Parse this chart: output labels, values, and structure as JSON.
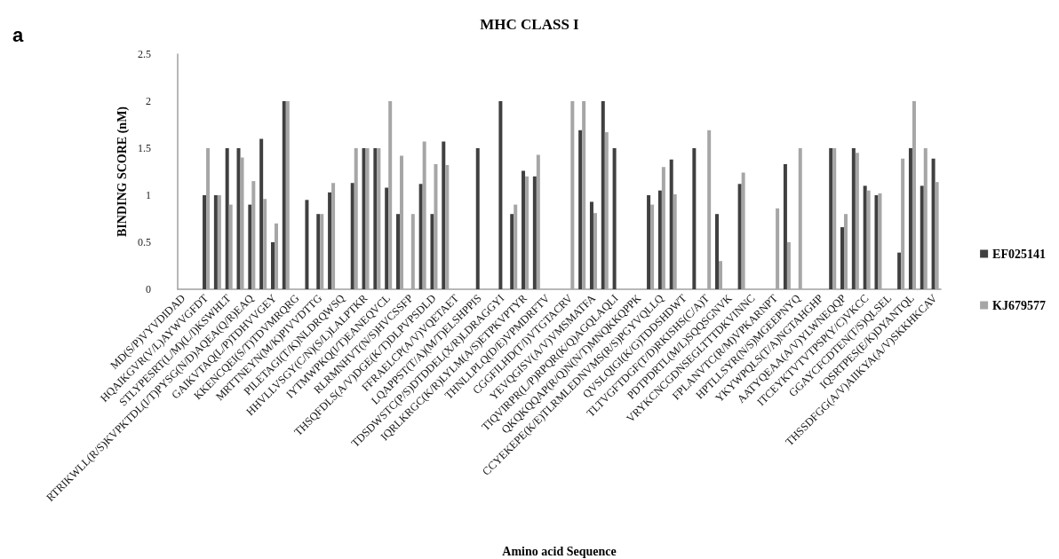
{
  "chart_data": {
    "type": "bar",
    "title": "MHC CLASS I",
    "xlabel": "Amino acid Sequence",
    "ylabel": "BINDING SCORE (nM)",
    "annotations": [
      "a"
    ],
    "categories": [
      "MD(S/P)VYVDIDAD",
      null,
      "HQAIKGVR(V/L)AYWVGFDT",
      null,
      "STLYPESRT(L/M)(L/I)KSWHLT",
      null,
      "RTRIKWLL(R/S)KVPKTDL(I/T)PYSG(N/D)AQEA(Q/R)EAQ",
      null,
      "GAIKVTAQ(L/P)TDHVVGEY",
      null,
      "KKENCQEI(S/T)TDVMRQRG",
      null,
      "MRTTNEYN(M/K)PIVVDTTG",
      null,
      "PILETAGI(T/K)NLDRQWSQ",
      null,
      "HHVLLVSGY(C/N)(S/L)LALPTKR",
      null,
      "IYTMWPKQ(I/T)EANEQVCL",
      null,
      "RLRMNHVT(N/S)HVCSSFP",
      null,
      "THSQFDLS(A/V)DGE(K/T)DLPVPSDLD",
      null,
      "FFRAELCP(A/V)VQETAET",
      null,
      "LQAPPST(T/A)(M/T)ELSHPPIS",
      null,
      "TDSDWSTC(P/S)DTDDEL(X/R)LDRAGGYI",
      null,
      "IQRLKRGC(K/R)LYLM(A/S)ETPKVPTYR",
      null,
      "THNLLPLQ(D/E)VPMDRFTV",
      null,
      "CGGFILHD(T/I)VTGTACRV",
      null,
      "YEVQGISV(A/V)VMSMATFA",
      null,
      "TIQVIRPR(L/P)RPQR(K/Q)AGQLAQLI",
      null,
      "QKQKQQAP(R/Q)N(N/T)MNQKKQPPK",
      null,
      "CCYEKEPE(K/E)TLRMLEDNVMS(R/S)PGYVQLLQ",
      null,
      "QVSLQIGI(K/G)TDDSHDWT",
      null,
      "TLTVGFTDGF(T/D)RKISHS(C/A)T",
      null,
      "PDTPDRTL(M/L)SQQSGNVK",
      null,
      "VRYKCNCGDNSEGLTTTDKVINNC",
      null,
      "FPLANVTC(R/M)VPKARNPT",
      null,
      "HPTLLSYR(N/S)MGEEPNYQ",
      null,
      "YKYWPQLS(T/A)NGTAHGHP",
      null,
      "AATYQEAA(A/V)YLWNEQQP",
      null,
      "ITCEYKTVTVTPSP(Y/C)VKCC",
      null,
      "GGAYCFCDTEN(T/S)QLSEL",
      null,
      "IQSRTPES(E/K)DYANTQL",
      null,
      "THSSDFGG(A/V)AIIKYA(A/V)SKKHKCAV"
    ],
    "series": [
      {
        "name": "EF025141",
        "color": "#404040",
        "values": [
          null,
          null,
          1.0,
          1.0,
          1.5,
          1.5,
          0.9,
          1.6,
          0.5,
          2.0,
          null,
          0.95,
          0.8,
          1.03,
          null,
          1.13,
          1.5,
          1.5,
          1.08,
          0.8,
          null,
          1.12,
          0.8,
          1.57,
          null,
          null,
          1.5,
          null,
          2.0,
          0.8,
          1.26,
          1.2,
          null,
          null,
          null,
          1.69,
          0.93,
          2.0,
          1.5,
          null,
          null,
          1.0,
          1.05,
          1.38,
          null,
          1.5,
          null,
          0.8,
          null,
          1.12,
          null,
          null,
          null,
          1.33,
          null,
          null,
          null,
          1.5,
          0.66,
          1.5,
          1.1,
          1.0,
          null,
          0.39,
          1.5,
          1.1,
          1.39
        ]
      },
      {
        "name": "KJ679577",
        "color": "#a6a6a6",
        "values": [
          null,
          null,
          1.5,
          1.0,
          0.9,
          1.4,
          1.15,
          0.96,
          0.7,
          2.0,
          null,
          null,
          0.8,
          1.13,
          null,
          1.5,
          1.5,
          1.5,
          2.0,
          1.42,
          0.8,
          1.57,
          1.33,
          1.32,
          null,
          null,
          null,
          null,
          null,
          0.9,
          1.2,
          1.43,
          null,
          null,
          2.0,
          2.0,
          0.81,
          1.67,
          null,
          null,
          null,
          0.9,
          1.3,
          1.01,
          null,
          null,
          1.69,
          0.3,
          null,
          1.24,
          null,
          null,
          0.86,
          0.5,
          1.5,
          null,
          null,
          1.5,
          0.8,
          1.45,
          1.05,
          1.02,
          null,
          1.39,
          2.0,
          1.5,
          1.14
        ]
      }
    ],
    "ylim": [
      0,
      2.5
    ],
    "yticks": [
      0,
      0.5,
      1,
      1.5,
      2,
      2.5
    ],
    "grid": false,
    "legend": "right"
  }
}
